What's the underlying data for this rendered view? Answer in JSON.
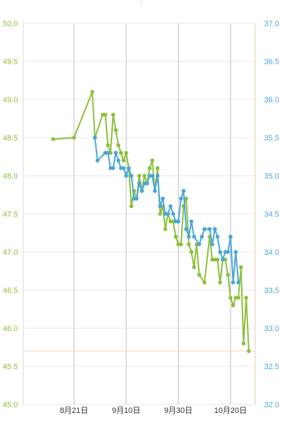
{
  "chart_data": {
    "type": "line",
    "left_axis": {
      "min": 45.0,
      "max": 50.0,
      "step": 0.5,
      "color": "#8bc03c",
      "ticks": [
        "45.0",
        "45.5",
        "46.0",
        "46.5",
        "47.0",
        "47.5",
        "48.0",
        "48.5",
        "49.0",
        "49.5",
        "50.0"
      ]
    },
    "right_axis": {
      "min": 32.0,
      "max": 37.0,
      "step": 0.5,
      "color": "#4aa6d8",
      "ticks": [
        "32.0",
        "32.5",
        "33.0",
        "33.5",
        "34.0",
        "34.5",
        "35.0",
        "35.5",
        "36.0",
        "36.5",
        "37.0"
      ]
    },
    "x_axis": {
      "dates": [
        "08-21",
        "09-10",
        "09-30",
        "10-20"
      ],
      "labels": [
        "8月21日",
        "9月10日",
        "9月30日",
        "10月20日"
      ]
    },
    "reference_line": {
      "axis": "left",
      "value": 45.7,
      "color": "#f6d3bd"
    },
    "grid": {
      "horizontal": true,
      "vertical": true
    },
    "series": [
      {
        "axis": "left",
        "color": "#8bc03c",
        "points": [
          [
            "08-13",
            48.48
          ],
          [
            "08-21",
            48.5
          ],
          [
            "08-28",
            49.1
          ],
          [
            "08-29",
            48.5
          ],
          [
            "09-01",
            48.8
          ],
          [
            "09-02",
            48.8
          ],
          [
            "09-03",
            48.4
          ],
          [
            "09-04",
            48.3
          ],
          [
            "09-05",
            48.8
          ],
          [
            "09-06",
            48.6
          ],
          [
            "09-07",
            48.4
          ],
          [
            "09-08",
            48.3
          ],
          [
            "09-09",
            48.2
          ],
          [
            "09-10",
            48.3
          ],
          [
            "09-11",
            48.1
          ],
          [
            "09-12",
            47.6
          ],
          [
            "09-13",
            47.8
          ],
          [
            "09-14",
            47.7
          ],
          [
            "09-15",
            48.0
          ],
          [
            "09-16",
            47.8
          ],
          [
            "09-17",
            48.0
          ],
          [
            "09-18",
            47.9
          ],
          [
            "09-19",
            48.1
          ],
          [
            "09-20",
            48.2
          ],
          [
            "09-21",
            47.8
          ],
          [
            "09-22",
            48.1
          ],
          [
            "09-23",
            47.5
          ],
          [
            "09-24",
            47.6
          ],
          [
            "09-25",
            47.3
          ],
          [
            "09-26",
            47.5
          ],
          [
            "09-27",
            47.4
          ],
          [
            "09-28",
            47.4
          ],
          [
            "09-29",
            47.2
          ],
          [
            "09-30",
            47.1
          ],
          [
            "10-01",
            47.1
          ],
          [
            "10-02",
            47.6
          ],
          [
            "10-03",
            47.7
          ],
          [
            "10-04",
            47.1
          ],
          [
            "10-05",
            47.0
          ],
          [
            "10-06",
            46.8
          ],
          [
            "10-07",
            47.1
          ],
          [
            "10-08",
            46.7
          ],
          [
            "10-10",
            46.6
          ],
          [
            "10-12",
            47.2
          ],
          [
            "10-13",
            46.9
          ],
          [
            "10-14",
            46.9
          ],
          [
            "10-15",
            46.9
          ],
          [
            "10-16",
            46.6
          ],
          [
            "10-17",
            46.9
          ],
          [
            "10-18",
            46.9
          ],
          [
            "10-19",
            46.7
          ],
          [
            "10-20",
            46.4
          ],
          [
            "10-21",
            46.3
          ],
          [
            "10-22",
            46.4
          ],
          [
            "10-23",
            46.4
          ],
          [
            "10-24",
            46.8
          ],
          [
            "10-25",
            45.8
          ],
          [
            "10-26",
            46.4
          ],
          [
            "10-27",
            45.7
          ]
        ]
      },
      {
        "axis": "right",
        "color": "#4aa6d8",
        "points": [
          [
            "08-29",
            35.5
          ],
          [
            "08-30",
            35.2
          ],
          [
            "09-02",
            35.3
          ],
          [
            "09-03",
            35.3
          ],
          [
            "09-04",
            35.1
          ],
          [
            "09-05",
            35.1
          ],
          [
            "09-06",
            35.3
          ],
          [
            "09-07",
            35.2
          ],
          [
            "09-08",
            35.1
          ],
          [
            "09-09",
            35.1
          ],
          [
            "09-10",
            35.0
          ],
          [
            "09-11",
            35.1
          ],
          [
            "09-12",
            35.0
          ],
          [
            "09-13",
            34.7
          ],
          [
            "09-14",
            34.7
          ],
          [
            "09-15",
            34.9
          ],
          [
            "09-16",
            34.8
          ],
          [
            "09-17",
            34.9
          ],
          [
            "09-18",
            34.9
          ],
          [
            "09-19",
            35.0
          ],
          [
            "09-20",
            35.0
          ],
          [
            "09-21",
            34.8
          ],
          [
            "09-22",
            35.0
          ],
          [
            "09-23",
            34.6
          ],
          [
            "09-24",
            34.7
          ],
          [
            "09-25",
            34.5
          ],
          [
            "09-26",
            34.5
          ],
          [
            "09-27",
            34.6
          ],
          [
            "09-28",
            34.5
          ],
          [
            "09-29",
            34.4
          ],
          [
            "09-30",
            34.4
          ],
          [
            "10-01",
            34.7
          ],
          [
            "10-02",
            34.8
          ],
          [
            "10-03",
            34.3
          ],
          [
            "10-04",
            34.2
          ],
          [
            "10-05",
            34.4
          ],
          [
            "10-06",
            34.2
          ],
          [
            "10-08",
            34.1
          ],
          [
            "10-09",
            34.2
          ],
          [
            "10-10",
            34.3
          ],
          [
            "10-12",
            34.3
          ],
          [
            "10-13",
            34.1
          ],
          [
            "10-14",
            34.3
          ],
          [
            "10-15",
            34.2
          ],
          [
            "10-16",
            34.0
          ],
          [
            "10-17",
            33.9
          ],
          [
            "10-18",
            34.0
          ],
          [
            "10-19",
            34.0
          ],
          [
            "10-20",
            34.2
          ],
          [
            "10-21",
            33.6
          ],
          [
            "10-22",
            34.0
          ],
          [
            "10-23",
            33.6
          ]
        ]
      }
    ]
  }
}
